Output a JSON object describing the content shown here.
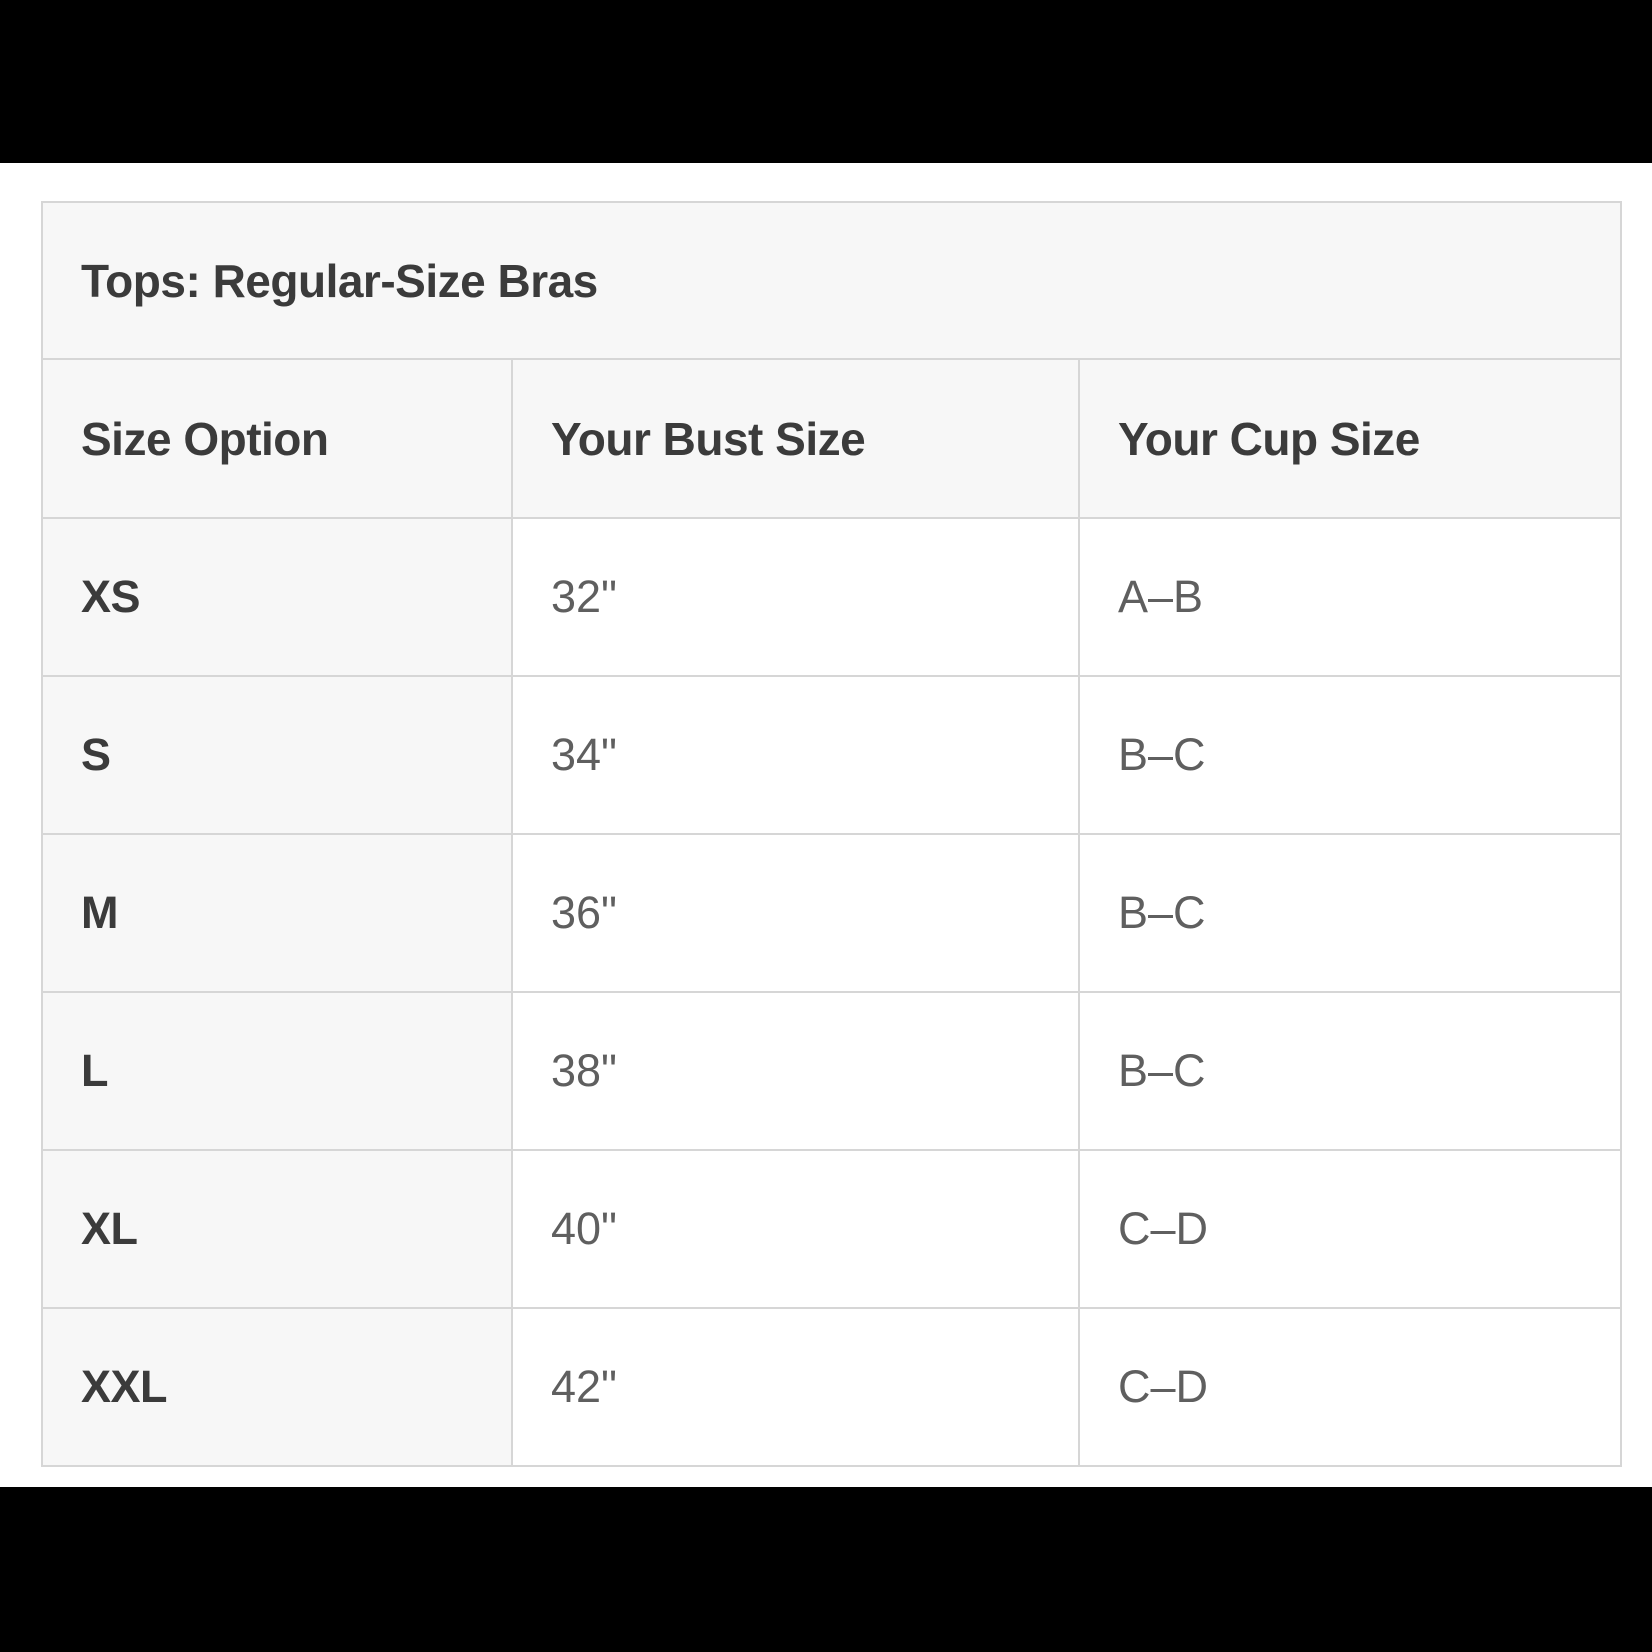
{
  "chart": {
    "title": "Tops: Regular-Size Bras",
    "columns": {
      "size": "Size Option",
      "bust": "Your Bust Size",
      "cup": "Your Cup Size"
    },
    "rows": [
      {
        "size": "XS",
        "bust": "32\"",
        "cup": "A–B"
      },
      {
        "size": "S",
        "bust": "34\"",
        "cup": "B–C"
      },
      {
        "size": "M",
        "bust": "36\"",
        "cup": "B–C"
      },
      {
        "size": "L",
        "bust": "38\"",
        "cup": "B–C"
      },
      {
        "size": "XL",
        "bust": "40\"",
        "cup": "C–D"
      },
      {
        "size": "XXL",
        "bust": "42\"",
        "cup": "C–D"
      }
    ]
  },
  "colors": {
    "letterbox": "#000000",
    "page_background": "#ffffff",
    "cell_shaded_background": "#f7f7f7",
    "border": "#d6d6d6",
    "heading_text": "#3b3b3b",
    "value_text": "#5f5f5f"
  }
}
